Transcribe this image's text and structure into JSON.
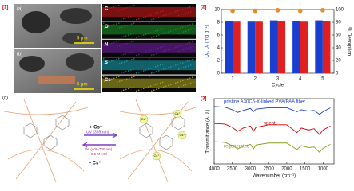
{
  "panels": {
    "p1": "[1]",
    "a": "(a)",
    "b": "(b)",
    "c": "(c)",
    "p2": "[2]",
    "p3": "[3]"
  },
  "sem": {
    "scale_a": "5 μm",
    "scale_b": "5 μm"
  },
  "eds_maps": [
    "C",
    "O",
    "N",
    "S",
    "Cs"
  ],
  "schematic": {
    "add": "+ Cs⁺",
    "uv": "UV (365 nm)",
    "vis": "Vis (400-700 nm)",
    "hcl": "+ 0.5 M HCl",
    "remove": "- Cs⁺",
    "cs_labels": [
      "Cs⁺",
      "Cs⁺",
      "Cs⁺",
      "Cs⁺"
    ]
  },
  "chart_data": [
    {
      "type": "bar",
      "xlabel": "Cycle",
      "ylabel": "Qₑ, Dₑ (mg g⁻¹)",
      "y2label": "% Desorption",
      "categories": [
        "1",
        "2",
        "3",
        "4",
        "5"
      ],
      "series": [
        {
          "color": "#1a3fd0",
          "values": [
            8.2,
            8.1,
            8.3,
            8.2,
            8.3
          ]
        },
        {
          "color": "#e02020",
          "values": [
            8.1,
            8.1,
            8.2,
            8.1,
            8.2
          ]
        },
        {
          "color": "#f08a1c",
          "values": [
            98,
            98,
            99,
            98,
            99
          ],
          "axis": "y2"
        }
      ],
      "ylim": [
        0,
        10
      ],
      "yticks": [
        0,
        2,
        4,
        6,
        8,
        10
      ],
      "y2lim": [
        0,
        100
      ],
      "y2ticks": [
        0,
        20,
        40,
        60,
        80,
        100
      ]
    },
    {
      "type": "line",
      "xlabel": "Wavenumber (cm⁻¹)",
      "ylabel": "Transmittance (A.U.)",
      "x": [
        4000,
        3700,
        3500,
        3350,
        3200,
        3000,
        2920,
        2850,
        2500,
        2000,
        1720,
        1600,
        1400,
        1250,
        1100,
        1000,
        800
      ],
      "series": [
        {
          "name": "pristine A30C6-X-linked PVA/PAA fiber",
          "color": "#1f3fbf",
          "values": [
            8.8,
            8.7,
            8.3,
            7.9,
            8.2,
            8.5,
            8.0,
            8.4,
            8.6,
            8.6,
            8.0,
            8.3,
            8.1,
            8.2,
            7.6,
            8.0,
            8.6
          ]
        },
        {
          "name": "spent",
          "color": "#d00000",
          "values": [
            6.2,
            6.1,
            5.6,
            5.0,
            5.5,
            5.8,
            5.0,
            5.6,
            6.0,
            6.0,
            4.8,
            5.5,
            5.2,
            5.4,
            4.5,
            5.2,
            5.8
          ]
        },
        {
          "name": "regenerated",
          "color": "#8a9a20",
          "values": [
            3.4,
            3.3,
            2.8,
            2.3,
            2.7,
            3.0,
            2.3,
            2.9,
            3.2,
            3.2,
            2.2,
            2.8,
            2.5,
            2.6,
            1.8,
            2.4,
            3.0
          ]
        }
      ],
      "xlim": [
        4000,
        700
      ],
      "xticks": [
        4000,
        3500,
        3000,
        2500,
        2000,
        1500,
        1000
      ],
      "ylim": [
        0,
        10
      ]
    }
  ]
}
